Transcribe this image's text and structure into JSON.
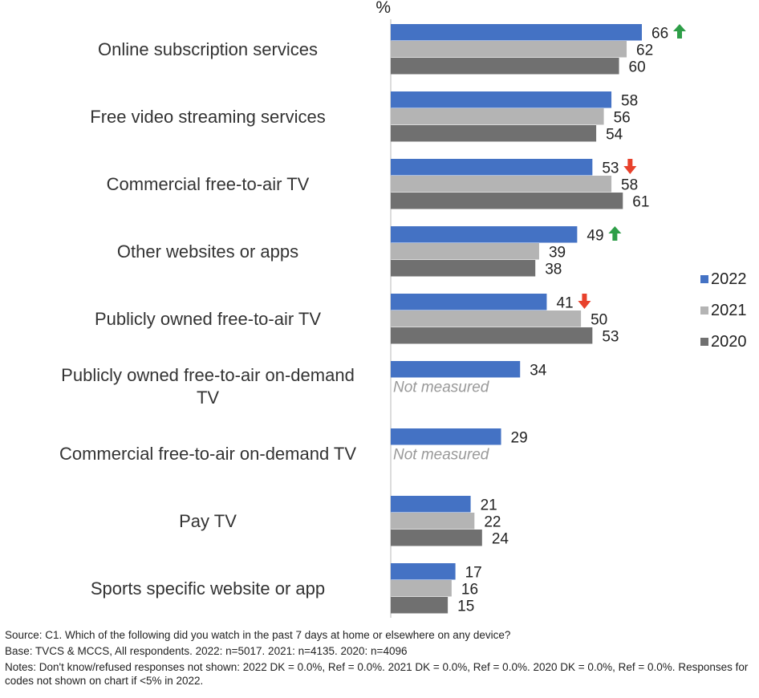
{
  "chart_data": {
    "type": "bar",
    "orientation": "horizontal",
    "unit_label": "%",
    "xlim": [
      0,
      100
    ],
    "grid": false,
    "legend_position": "right",
    "categories": [
      [
        "Online subscription services"
      ],
      [
        "Free video streaming services"
      ],
      [
        "Commercial free-to-air TV"
      ],
      [
        "Other websites or apps"
      ],
      [
        "Publicly owned free-to-air TV"
      ],
      [
        "Publicly owned free-to-air on-demand",
        "TV"
      ],
      [
        "Commercial free-to-air on-demand TV"
      ],
      [
        "Pay TV"
      ],
      [
        "Sports specific website or app"
      ]
    ],
    "series": [
      {
        "name": "2022",
        "color": "#4472C4",
        "values": [
          66,
          58,
          53,
          49,
          41,
          34,
          29,
          21,
          17
        ]
      },
      {
        "name": "2021",
        "color": "#B4B4B4",
        "values": [
          62,
          56,
          58,
          39,
          50,
          null,
          null,
          22,
          16
        ]
      },
      {
        "name": "2020",
        "color": "#707070",
        "values": [
          60,
          54,
          61,
          38,
          53,
          null,
          null,
          24,
          15
        ]
      }
    ],
    "not_measured_label": "Not measured",
    "indicators": [
      {
        "category_index": 0,
        "direction": "up",
        "color": "#2E9E48"
      },
      {
        "category_index": 2,
        "direction": "down",
        "color": "#E8412C"
      },
      {
        "category_index": 3,
        "direction": "up",
        "color": "#2E9E48"
      },
      {
        "category_index": 4,
        "direction": "down",
        "color": "#E8412C"
      }
    ]
  },
  "notes": {
    "source": "Source: C1. Which of the following did you watch in the past 7 days at home or elsewhere on any device?",
    "base": "Base: TVCS & MCCS, All respondents. 2022: n=5017. 2021: n=4135. 2020: n=4096",
    "notes": "Notes: Don't know/refused responses not shown: 2022 DK = 0.0%, Ref = 0.0%. 2021 DK = 0.0%, Ref = 0.0%. 2020 DK = 0.0%, Ref = 0.0%. Responses for codes not shown on chart if <5% in 2022."
  }
}
